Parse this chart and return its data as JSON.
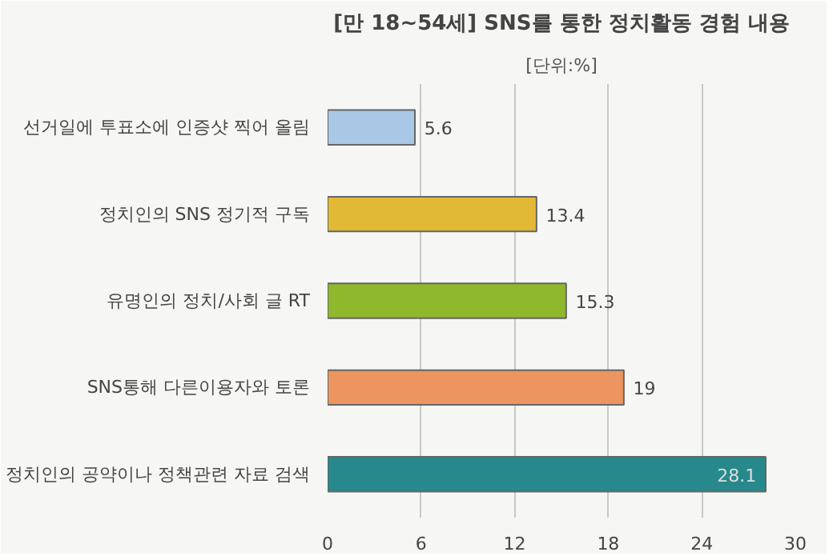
{
  "chart_data": {
    "type": "bar",
    "orientation": "horizontal",
    "title": "[만 18~54세] SNS를 통한 정치활동 경험 내용",
    "subtitle": "[단위:%]",
    "categories": [
      "선거일에 투표소에 인증샷 찍어 올림",
      "정치인의 SNS 정기적 구독",
      "유명인의 정치/사회 글 RT",
      "SNS통해 다른이용자와 토론",
      "정치인의 공약이나 정책관련 자료 검색"
    ],
    "values": [
      5.6,
      13.4,
      15.3,
      19,
      28.1
    ],
    "colors": [
      "#a9c8e6",
      "#e2b935",
      "#8fb82c",
      "#ec9561",
      "#27898c"
    ],
    "xlim": [
      0,
      30
    ],
    "xticks": [
      0,
      6,
      12,
      18,
      24,
      30
    ],
    "grid": "x",
    "data_labels": true
  }
}
